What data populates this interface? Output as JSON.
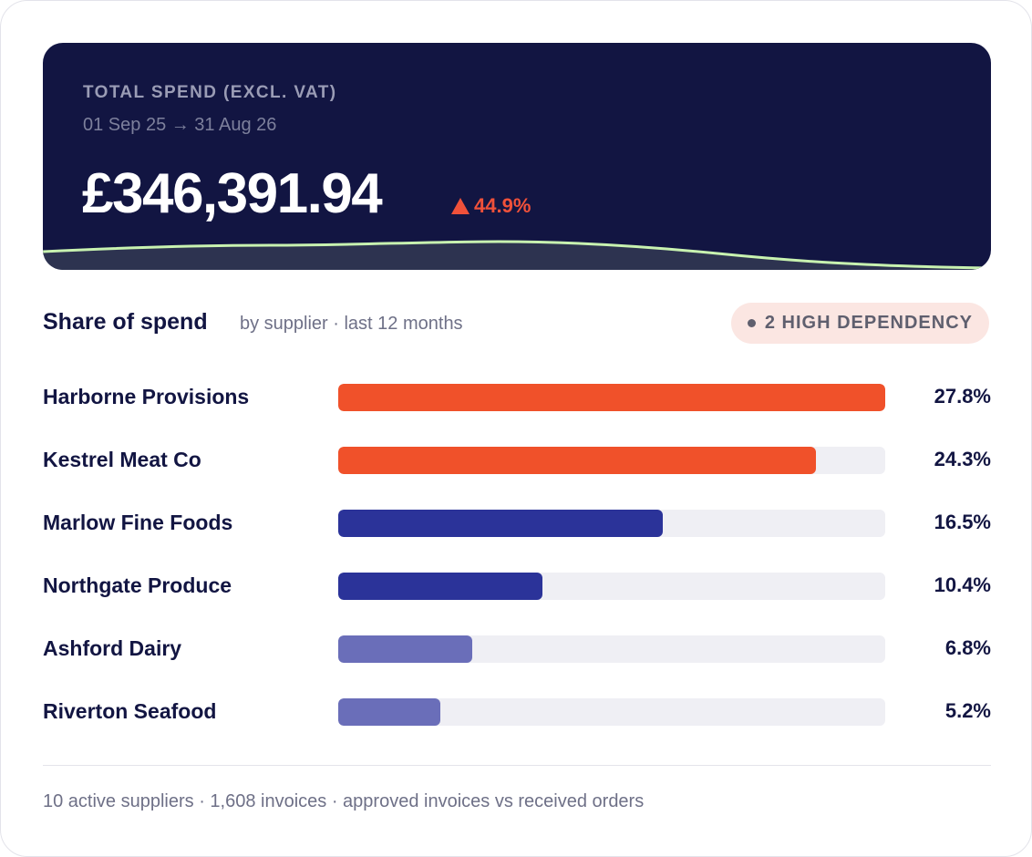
{
  "hero": {
    "eyebrow": "TOTAL SPEND (EXCL. VAT)",
    "period": "01 Sep 25 → 31 Aug 26",
    "amount": "£346,391.94",
    "delta": "44.9%",
    "delta_direction": "up",
    "delta_color": "#f0513a",
    "background": "#121542",
    "sparkline_color": "#c8f2b0"
  },
  "section": {
    "title": "Share of spend",
    "subtitle": "by supplier · last 12 months",
    "badge": "2 HIGH DEPENDENCY"
  },
  "suppliers": [
    {
      "name": "Harborne Provisions",
      "share": 27.8,
      "share_label": "27.8%",
      "color": "#f0512a",
      "level": "high"
    },
    {
      "name": "Kestrel Meat Co",
      "share": 24.3,
      "share_label": "24.3%",
      "color": "#f0512a",
      "level": "high"
    },
    {
      "name": "Marlow Fine Foods",
      "share": 16.5,
      "share_label": "16.5%",
      "color": "#2b3399",
      "level": "medium"
    },
    {
      "name": "Northgate Produce",
      "share": 10.4,
      "share_label": "10.4%",
      "color": "#2b3399",
      "level": "medium"
    },
    {
      "name": "Ashford Dairy",
      "share": 6.8,
      "share_label": "6.8%",
      "color": "#6a6eb9",
      "level": "low"
    },
    {
      "name": "Riverton Seafood",
      "share": 5.2,
      "share_label": "5.2%",
      "color": "#6a6eb9",
      "level": "low"
    }
  ],
  "footer": {
    "text": "10 active suppliers · 1,608 invoices · approved invoices vs received orders"
  }
}
